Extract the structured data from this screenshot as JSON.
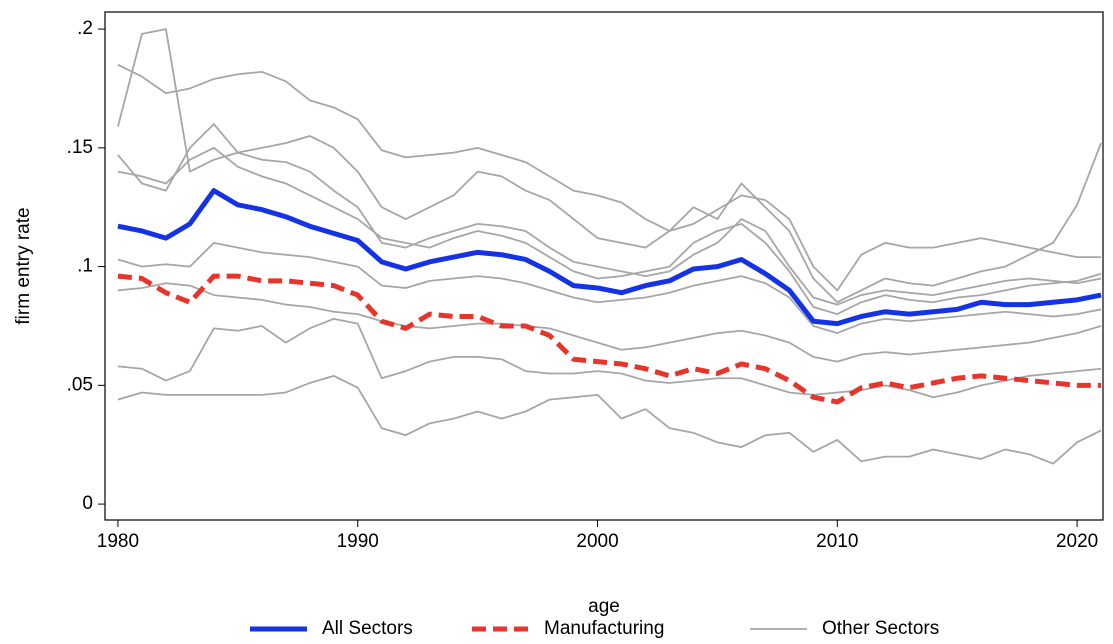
{
  "chart_data": {
    "type": "line",
    "x_label": "age",
    "y_label": "firm entry rate",
    "x": [
      1980,
      1981,
      1982,
      1983,
      1984,
      1985,
      1986,
      1987,
      1988,
      1989,
      1990,
      1991,
      1992,
      1993,
      1994,
      1995,
      1996,
      1997,
      1998,
      1999,
      2000,
      2001,
      2002,
      2003,
      2004,
      2005,
      2006,
      2007,
      2008,
      2009,
      2010,
      2011,
      2012,
      2013,
      2014,
      2015,
      2016,
      2017,
      2018,
      2019,
      2020,
      2021
    ],
    "xlim": [
      1979.46,
      2021.08
    ],
    "xticks": [
      1980,
      1990,
      2000,
      2010,
      2020
    ],
    "ylim": [
      -0.0067,
      0.2072
    ],
    "yticks": [
      0,
      {
        "value": 0.05,
        "label": ".05"
      },
      {
        "value": 0.1,
        "label": ".1"
      },
      {
        "value": 0.15,
        "label": ".15"
      },
      {
        "value": 0.2,
        "label": ".2"
      }
    ],
    "legend": "bottom",
    "series": [
      {
        "name": "All Sectors",
        "color": "#1432e6",
        "linestyle": "solid",
        "values": [
          0.117,
          0.115,
          0.112,
          0.118,
          0.132,
          0.126,
          0.124,
          0.121,
          0.117,
          0.114,
          0.111,
          0.102,
          0.099,
          0.102,
          0.104,
          0.106,
          0.105,
          0.103,
          0.098,
          0.092,
          0.091,
          0.089,
          0.092,
          0.094,
          0.099,
          0.1,
          0.103,
          0.097,
          0.09,
          0.077,
          0.076,
          0.079,
          0.081,
          0.08,
          0.081,
          0.082,
          0.085,
          0.084,
          0.084,
          0.085,
          0.086,
          0.088
        ]
      },
      {
        "name": "Manufacturing",
        "color": "#e8352b",
        "linestyle": "dashed",
        "values": [
          0.096,
          0.095,
          0.089,
          0.085,
          0.096,
          0.096,
          0.094,
          0.094,
          0.093,
          0.092,
          0.088,
          0.077,
          0.074,
          0.08,
          0.079,
          0.079,
          0.075,
          0.075,
          0.071,
          0.061,
          0.06,
          0.059,
          0.057,
          0.054,
          0.057,
          0.055,
          0.059,
          0.057,
          0.052,
          0.045,
          0.043,
          0.049,
          0.051,
          0.049,
          0.051,
          0.053,
          0.054,
          0.053,
          0.052,
          0.051,
          0.05,
          0.05
        ]
      },
      {
        "name": "Other Sectors",
        "color": "#a6a6a6",
        "linestyle": "solid",
        "values": [
          [
            0.185,
            0.18,
            0.173,
            0.175,
            0.179,
            0.181,
            0.182,
            0.178,
            0.17,
            0.167,
            0.162,
            0.149,
            0.146,
            0.147,
            0.148,
            0.15,
            0.147,
            0.144,
            0.138,
            0.132,
            0.13,
            0.127,
            0.12,
            0.115,
            0.118,
            0.124,
            0.13,
            0.128,
            0.12,
            0.1,
            0.09,
            0.105,
            0.11,
            0.108,
            0.108,
            0.11,
            0.112,
            0.11,
            0.108,
            0.106,
            0.104,
            0.104
          ],
          [
            0.159,
            0.198,
            0.2,
            0.14,
            0.145,
            0.148,
            0.15,
            0.152,
            0.155,
            0.15,
            0.14,
            0.125,
            0.12,
            0.125,
            0.13,
            0.14,
            0.138,
            0.132,
            0.128,
            0.12,
            0.112,
            0.11,
            0.108,
            0.115,
            0.125,
            0.12,
            0.135,
            0.125,
            0.115,
            0.095,
            0.085,
            0.09,
            0.095,
            0.093,
            0.092,
            0.095,
            0.098,
            0.1,
            0.105,
            0.11,
            0.126,
            0.152
          ],
          [
            0.147,
            0.135,
            0.132,
            0.15,
            0.16,
            0.148,
            0.145,
            0.144,
            0.14,
            0.132,
            0.125,
            0.11,
            0.108,
            0.112,
            0.115,
            0.118,
            0.117,
            0.115,
            0.108,
            0.102,
            0.1,
            0.098,
            0.096,
            0.098,
            0.105,
            0.11,
            0.12,
            0.115,
            0.1,
            0.087,
            0.084,
            0.088,
            0.09,
            0.089,
            0.088,
            0.09,
            0.092,
            0.094,
            0.095,
            0.094,
            0.093,
            0.095
          ],
          [
            0.14,
            0.138,
            0.135,
            0.145,
            0.15,
            0.142,
            0.138,
            0.135,
            0.13,
            0.125,
            0.12,
            0.112,
            0.11,
            0.108,
            0.112,
            0.115,
            0.113,
            0.11,
            0.104,
            0.098,
            0.095,
            0.096,
            0.098,
            0.1,
            0.11,
            0.115,
            0.118,
            0.11,
            0.098,
            0.083,
            0.08,
            0.085,
            0.088,
            0.086,
            0.085,
            0.087,
            0.088,
            0.09,
            0.092,
            0.093,
            0.094,
            0.097
          ],
          [
            0.103,
            0.1,
            0.101,
            0.1,
            0.11,
            0.108,
            0.106,
            0.105,
            0.104,
            0.102,
            0.1,
            0.092,
            0.091,
            0.094,
            0.095,
            0.096,
            0.095,
            0.093,
            0.09,
            0.087,
            0.085,
            0.086,
            0.087,
            0.089,
            0.092,
            0.094,
            0.096,
            0.093,
            0.087,
            0.075,
            0.072,
            0.076,
            0.078,
            0.077,
            0.078,
            0.079,
            0.08,
            0.081,
            0.08,
            0.079,
            0.08,
            0.082
          ],
          [
            0.09,
            0.091,
            0.093,
            0.092,
            0.088,
            0.087,
            0.086,
            0.084,
            0.083,
            0.081,
            0.08,
            0.077,
            0.075,
            0.074,
            0.075,
            0.076,
            0.076,
            0.075,
            0.074,
            0.071,
            0.068,
            0.065,
            0.066,
            0.068,
            0.07,
            0.072,
            0.073,
            0.071,
            0.068,
            0.062,
            0.06,
            0.063,
            0.064,
            0.063,
            0.064,
            0.065,
            0.066,
            0.067,
            0.068,
            0.07,
            0.072,
            0.075
          ],
          [
            0.058,
            0.057,
            0.052,
            0.056,
            0.074,
            0.073,
            0.075,
            0.068,
            0.074,
            0.078,
            0.076,
            0.053,
            0.056,
            0.06,
            0.062,
            0.062,
            0.061,
            0.056,
            0.055,
            0.055,
            0.056,
            0.055,
            0.052,
            0.051,
            0.052,
            0.053,
            0.053,
            0.05,
            0.047,
            0.046,
            0.047,
            0.048,
            0.05,
            0.048,
            0.045,
            0.047,
            0.05,
            0.052,
            0.054,
            0.055,
            0.056,
            0.057
          ],
          [
            0.044,
            0.047,
            0.046,
            0.046,
            0.046,
            0.046,
            0.046,
            0.047,
            0.051,
            0.054,
            0.049,
            0.032,
            0.029,
            0.034,
            0.036,
            0.039,
            0.036,
            0.039,
            0.044,
            0.045,
            0.046,
            0.036,
            0.04,
            0.032,
            0.03,
            0.026,
            0.024,
            0.029,
            0.03,
            0.022,
            0.027,
            0.018,
            0.02,
            0.02,
            0.023,
            0.021,
            0.019,
            0.023,
            0.021,
            0.017,
            0.026,
            0.031
          ]
        ]
      }
    ]
  }
}
